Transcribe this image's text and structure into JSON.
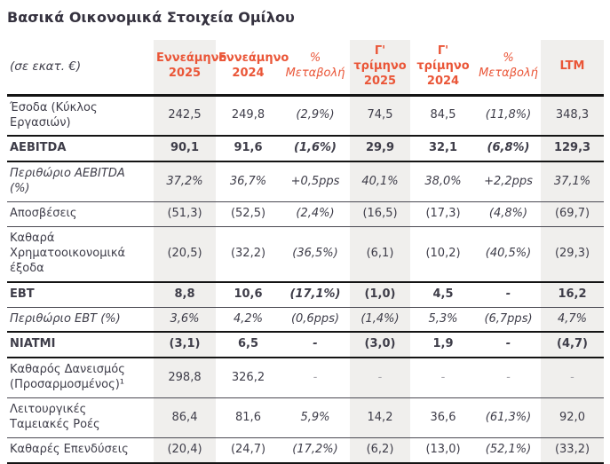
{
  "title": "Βασικά Οικονομικά Στοιχεία Ομίλου",
  "colors": {
    "accent_orange": "#EA5638",
    "shaded_column_bg": "#F0EFED",
    "body_text": "#3E3D49",
    "title_text": "#35323F"
  },
  "table": {
    "unit_label": "(σε εκατ. €)",
    "columns": [
      {
        "lines": [
          "Εννεάμηνο",
          "2025"
        ],
        "style": "bold",
        "shaded": true
      },
      {
        "lines": [
          "Εννεάμηνο",
          "2024"
        ],
        "style": "bold",
        "shaded": false
      },
      {
        "lines": [
          "%",
          "Μεταβολή"
        ],
        "style": "italic",
        "shaded": false
      },
      {
        "lines": [
          "Γ' τρίμηνο",
          "2025"
        ],
        "style": "bold",
        "shaded": true
      },
      {
        "lines": [
          "Γ' τρίμηνο",
          "2024"
        ],
        "style": "bold",
        "shaded": false
      },
      {
        "lines": [
          "%",
          "Μεταβολή"
        ],
        "style": "italic",
        "shaded": false
      },
      {
        "lines": [
          "LTM"
        ],
        "style": "bold",
        "shaded": true
      }
    ],
    "rows": [
      {
        "label": "Έσοδα (Κύκλος Εργασιών)",
        "values": [
          "242,5",
          "249,8",
          "(2,9%)",
          "74,5",
          "84,5",
          "(11,8%)",
          "348,3"
        ],
        "emphasis": "normal",
        "border": "thick"
      },
      {
        "label": "AEBITDA",
        "values": [
          "90,1",
          "91,6",
          "(1,6%)",
          "29,9",
          "32,1",
          "(6,8%)",
          "129,3"
        ],
        "emphasis": "bold",
        "border": "thick"
      },
      {
        "label": "Περιθώριο AEBITDA (%)",
        "values": [
          "37,2%",
          "36,7%",
          "+0,5pps",
          "40,1%",
          "38,0%",
          "+2,2pps",
          "37,1%"
        ],
        "emphasis": "italic",
        "border": "thin"
      },
      {
        "label": "Αποσβέσεις",
        "values": [
          "(51,3)",
          "(52,5)",
          "(2,4%)",
          "(16,5)",
          "(17,3)",
          "(4,8%)",
          "(69,7)"
        ],
        "emphasis": "normal",
        "border": "thin"
      },
      {
        "label": "Καθαρά Χρηματοοικονομικά έξοδα",
        "values": [
          "(20,5)",
          "(32,2)",
          "(36,5%)",
          "(6,1)",
          "(10,2)",
          "(40,5%)",
          "(29,3)"
        ],
        "emphasis": "normal",
        "border": "thick"
      },
      {
        "label": "EBT",
        "values": [
          "8,8",
          "10,6",
          "(17,1%)",
          "(1,0)",
          "4,5",
          "-",
          "16,2"
        ],
        "emphasis": "bold",
        "border": "thin"
      },
      {
        "label": "Περιθώριο EBT (%)",
        "values": [
          "3,6%",
          "4,2%",
          "(0,6pps)",
          "(1,4%)",
          "5,3%",
          "(6,7pps)",
          "4,7%"
        ],
        "emphasis": "italic",
        "border": "thick"
      },
      {
        "label": "NIATMI",
        "values": [
          "(3,1)",
          "6,5",
          "-",
          "(3,0)",
          "1,9",
          "-",
          "(4,7)"
        ],
        "emphasis": "bold",
        "border": "thick"
      },
      {
        "label": "Καθαρός Δανεισμός (Προσαρμοσμένος)¹",
        "values": [
          "298,8",
          "326,2",
          "-",
          "-",
          "-",
          "-",
          "-"
        ],
        "emphasis": "normal",
        "border": "thin",
        "dash_muted": true
      },
      {
        "label": "Λειτουργικές Ταμειακές Ροές",
        "values": [
          "86,4",
          "81,6",
          "5,9%",
          "14,2",
          "36,6",
          "(61,3%)",
          "92,0"
        ],
        "emphasis": "normal",
        "border": "thin"
      },
      {
        "label": "Καθαρές Επενδύσεις",
        "values": [
          "(20,4)",
          "(24,7)",
          "(17,2%)",
          "(6,2)",
          "(13,0)",
          "(52,1%)",
          "(33,2)"
        ],
        "emphasis": "normal",
        "border": "thick"
      }
    ]
  }
}
